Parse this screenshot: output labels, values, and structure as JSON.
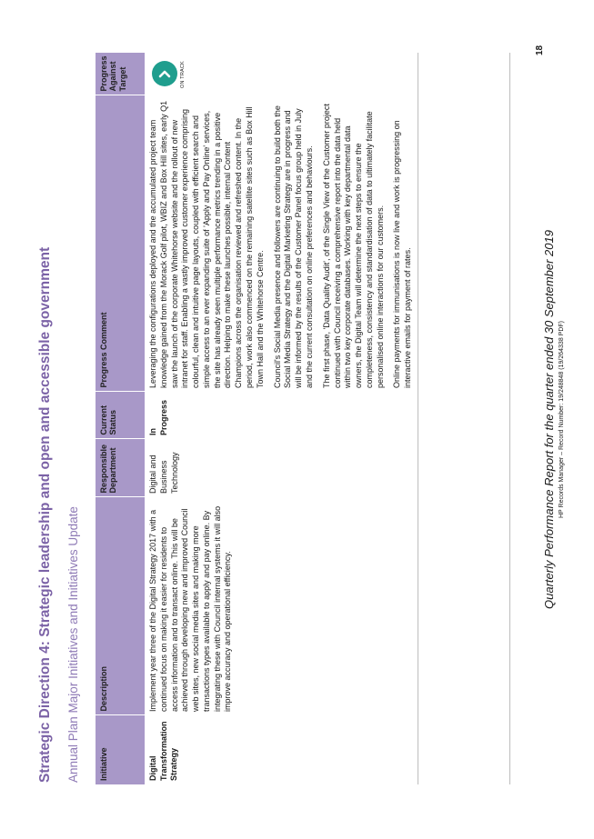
{
  "page": {
    "title": "Strategic Direction 4: Strategic leadership and open and accessible government",
    "subtitle": "Annual Plan Major Initiatives and Initiatives Update"
  },
  "table": {
    "headers": {
      "initiative": "Initiative",
      "description": "Description",
      "department": "Responsible Department",
      "status": "Current Status",
      "comment": "Progress Comment",
      "progress": "Progress Against Target"
    },
    "rows": [
      {
        "initiative": "Digital Transformation Strategy",
        "description": "Implement year three of the Digital Strategy 2017 with a continued focus on making it easier for residents to access information and to transact online. This will be achieved through developing new and improved Council web sites, new social media sites and making more transactions types available to apply and pay online. By integrating these with Council internal systems it will also improve accuracy and operational efficiency.",
        "department": "Digital and Business Technology",
        "status": "In Progress",
        "comments": [
          "Leveraging the configurations deployed and the accumulated project team knowledge gained from the Morack Golf pilot, WBIZ and Box Hill sites, early Q1 saw the launch of the corporate Whitehorse website and the rollout of new intranet for staff. Enabling a vastly improved customer experience comprising colourful, clean and intuitive page layouts, coupled with efficient search and simple access to an ever expanding suite of 'Apply and Pay Online' services, the site has already seen multiple performance metrics trending in a positive direction. Helping to make these launches possible, internal Content Champions across the organisation reviewed and refreshed content. In the period, work also commenced on the remaining satellite sites such as Box Hill Town Hall and the Whitehorse Centre.",
          "Council's Social Media presence and followers are continuing to build both the Social Media Strategy and the Digital Marketing Strategy are in progress and will be informed by the results of the Customer Panel focus group held in July and the current consultation on online preferences and behaviours.",
          "The first phase, 'Data Quality Audit', of the Single View of the Customer project continued with Council receiving a comprehensive report into the data held within two key corporate databases. Working with key departmental data owners, the Digital Team will determine the next steps to ensure the completeness, consistency and standardisation of data to ultimately facilitate personalised online interactions for our customers.",
          "Online payments for immunisations is now live and work is progressing on interactive emails for payment of rates."
        ],
        "progress_label": "ON TRACK",
        "progress_icon": "check-icon",
        "progress_color": "#1f9e8e"
      }
    ]
  },
  "footer": {
    "title": "Quarterly Performance Report for the quarter ended 30 September 2019",
    "record": "HP Records Manager – Record Number: 19/248848 (19/264338 PDF)",
    "page_number": "18"
  }
}
